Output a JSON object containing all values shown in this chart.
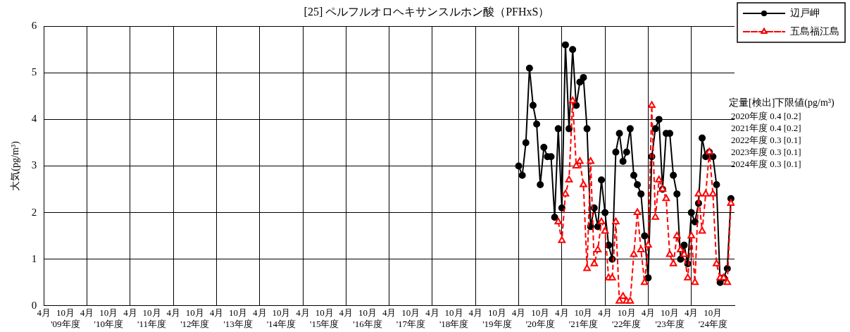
{
  "chart_data": {
    "type": "line",
    "title": "[25] ペルフルオロヘキサンスルホン酸（PFHxS）",
    "ylabel": "大気(pg/m³)",
    "xlim": [
      "2009-04",
      "2025-04"
    ],
    "xticks": [
      {
        "value": "2009-04",
        "label": "4月"
      },
      {
        "value": "2009-10",
        "label": "10月\n'09年度"
      },
      {
        "value": "2010-04",
        "label": "4月"
      },
      {
        "value": "2010-10",
        "label": "10月\n'10年度"
      },
      {
        "value": "2011-04",
        "label": "4月"
      },
      {
        "value": "2011-10",
        "label": "10月\n'11年度"
      },
      {
        "value": "2012-04",
        "label": "4月"
      },
      {
        "value": "2012-10",
        "label": "10月\n'12年度"
      },
      {
        "value": "2013-04",
        "label": "4月"
      },
      {
        "value": "2013-10",
        "label": "10月\n'13年度"
      },
      {
        "value": "2014-04",
        "label": "4月"
      },
      {
        "value": "2014-10",
        "label": "10月\n'14年度"
      },
      {
        "value": "2015-04",
        "label": "4月"
      },
      {
        "value": "2015-10",
        "label": "10月\n'15年度"
      },
      {
        "value": "2016-04",
        "label": "4月"
      },
      {
        "value": "2016-10",
        "label": "10月\n'16年度"
      },
      {
        "value": "2017-04",
        "label": "4月"
      },
      {
        "value": "2017-10",
        "label": "10月\n'17年度"
      },
      {
        "value": "2018-04",
        "label": "4月"
      },
      {
        "value": "2018-10",
        "label": "10月\n'18年度"
      },
      {
        "value": "2019-04",
        "label": "4月"
      },
      {
        "value": "2019-10",
        "label": "10月\n'19年度"
      },
      {
        "value": "2020-04",
        "label": "4月"
      },
      {
        "value": "2020-10",
        "label": "10月\n'20年度"
      },
      {
        "value": "2021-04",
        "label": "4月"
      },
      {
        "value": "2021-10",
        "label": "10月\n'21年度"
      },
      {
        "value": "2022-04",
        "label": "4月"
      },
      {
        "value": "2022-10",
        "label": "10月\n'22年度"
      },
      {
        "value": "2023-04",
        "label": "4月"
      },
      {
        "value": "2023-10",
        "label": "10月\n'23年度"
      },
      {
        "value": "2024-04",
        "label": "4月"
      },
      {
        "value": "2024-10",
        "label": "10月\n'24年度"
      }
    ],
    "ylim": [
      0,
      6
    ],
    "yticks": [
      0,
      1,
      2,
      3,
      4,
      5,
      6
    ],
    "grid": true,
    "legend": "top right",
    "series": [
      {
        "name": "辺戸岬",
        "color": "#000000",
        "marker": "circle",
        "line_style": "solid",
        "x": [
          "2020-04",
          "2020-05",
          "2020-06",
          "2020-07",
          "2020-08",
          "2020-09",
          "2020-10",
          "2020-11",
          "2020-12",
          "2021-01",
          "2021-02",
          "2021-03",
          "2021-04",
          "2021-05",
          "2021-06",
          "2021-07",
          "2021-08",
          "2021-09",
          "2021-10",
          "2021-11",
          "2021-12",
          "2022-01",
          "2022-02",
          "2022-03",
          "2022-04",
          "2022-05",
          "2022-06",
          "2022-07",
          "2022-08",
          "2022-09",
          "2022-10",
          "2022-11",
          "2022-12",
          "2023-01",
          "2023-02",
          "2023-03",
          "2023-04",
          "2023-05",
          "2023-06",
          "2023-07",
          "2023-08",
          "2023-09",
          "2023-10",
          "2023-11",
          "2023-12",
          "2024-01",
          "2024-02",
          "2024-03",
          "2024-04",
          "2024-05",
          "2024-06",
          "2024-07",
          "2024-08",
          "2024-09",
          "2024-10",
          "2024-11",
          "2024-12",
          "2025-01",
          "2025-02",
          "2025-03"
        ],
        "values": [
          3.0,
          2.8,
          3.5,
          5.1,
          4.3,
          3.9,
          2.6,
          3.4,
          3.2,
          3.2,
          1.9,
          3.8,
          2.1,
          5.6,
          3.8,
          5.5,
          4.3,
          4.8,
          4.9,
          3.8,
          1.7,
          2.1,
          1.7,
          2.7,
          2.0,
          1.3,
          1.0,
          3.3,
          3.7,
          3.1,
          3.3,
          3.8,
          2.8,
          2.6,
          2.4,
          1.5,
          0.6,
          3.2,
          3.8,
          4.0,
          2.5,
          3.7,
          3.7,
          2.8,
          2.4,
          1.0,
          1.3,
          0.9,
          2.0,
          1.8,
          2.2,
          3.6,
          3.2,
          3.3,
          3.2,
          2.6,
          0.5,
          0.6,
          0.8,
          2.3
        ]
      },
      {
        "name": "五島福江島",
        "color": "#ff0000",
        "marker": "triangle",
        "line_style": "dashed",
        "x": [
          "2021-03",
          "2021-04",
          "2021-05",
          "2021-06",
          "2021-07",
          "2021-08",
          "2021-09",
          "2021-10",
          "2021-11",
          "2021-12",
          "2022-01",
          "2022-02",
          "2022-03",
          "2022-04",
          "2022-05",
          "2022-06",
          "2022-07",
          "2022-08",
          "2022-09",
          "2022-10",
          "2022-11",
          "2022-12",
          "2023-01",
          "2023-02",
          "2023-03",
          "2023-04",
          "2023-05",
          "2023-06",
          "2023-07",
          "2023-08",
          "2023-09",
          "2023-10",
          "2023-11",
          "2023-12",
          "2024-01",
          "2024-02",
          "2024-03",
          "2024-04",
          "2024-05",
          "2024-06",
          "2024-07",
          "2024-08",
          "2024-09",
          "2024-10",
          "2024-11",
          "2024-12",
          "2025-01",
          "2025-02",
          "2025-03"
        ],
        "values": [
          1.8,
          1.4,
          2.4,
          2.7,
          4.4,
          3.0,
          3.1,
          2.6,
          0.8,
          3.1,
          0.9,
          1.2,
          1.8,
          1.6,
          0.6,
          0.6,
          1.8,
          0.1,
          0.2,
          0.1,
          0.1,
          1.1,
          2.0,
          1.2,
          0.5,
          1.3,
          4.3,
          1.9,
          2.7,
          2.5,
          2.3,
          1.1,
          0.9,
          1.5,
          1.2,
          1.1,
          0.6,
          1.5,
          0.5,
          2.4,
          1.6,
          2.4,
          3.3,
          2.4,
          0.9,
          0.6,
          0.6,
          0.5,
          2.2
        ]
      }
    ],
    "annotations": [
      "定量[検出]下限値(pg/m³)",
      "2020年度 0.4 [0.2]",
      "2021年度 0.4 [0.2]",
      "2022年度 0.3 [0.1]",
      "2023年度 0.3 [0.1]",
      "2024年度 0.3 [0.1]"
    ]
  }
}
